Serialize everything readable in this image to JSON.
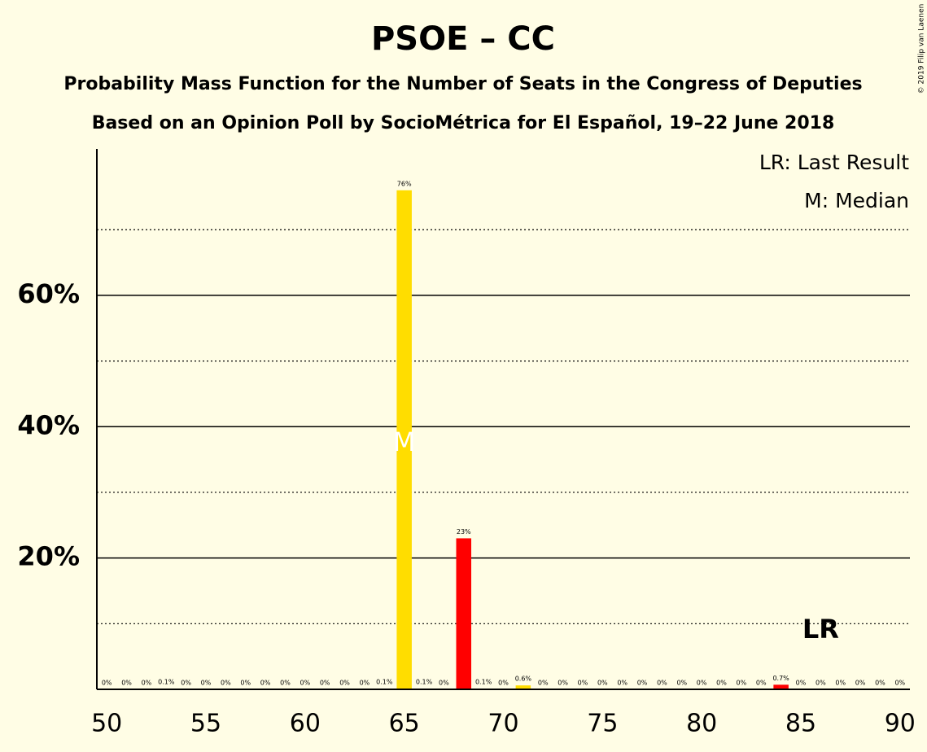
{
  "chart_data": {
    "type": "bar",
    "title": "PSOE – CC",
    "subtitle": "Probability Mass Function for the Number of Seats in the Congress of Deputies",
    "subtitle2": "Based on an Opinion Poll by SocioMétrica for El Español, 19–22 June 2018",
    "copyright": "© 2019 Filip van Laenen",
    "legend_lr": "LR: Last Result",
    "legend_median": "M: Median",
    "x": [
      50,
      51,
      52,
      53,
      54,
      55,
      56,
      57,
      58,
      59,
      60,
      61,
      62,
      63,
      64,
      65,
      66,
      67,
      68,
      69,
      70,
      71,
      72,
      73,
      74,
      75,
      76,
      77,
      78,
      79,
      80,
      81,
      82,
      83,
      84,
      85,
      86,
      87,
      88,
      89,
      90
    ],
    "values": [
      0,
      0,
      0,
      0.1,
      0,
      0,
      0,
      0,
      0,
      0,
      0,
      0,
      0,
      0,
      0.1,
      76,
      0.1,
      0,
      23,
      0.1,
      0,
      0.6,
      0,
      0,
      0,
      0,
      0,
      0,
      0,
      0,
      0,
      0,
      0,
      0,
      0.7,
      0,
      0,
      0,
      0,
      0,
      0
    ],
    "value_labels": [
      "0%",
      "0%",
      "0%",
      "0.1%",
      "0%",
      "0%",
      "0%",
      "0%",
      "0%",
      "0%",
      "0%",
      "0%",
      "0%",
      "0%",
      "0.1%",
      "76%",
      "0.1%",
      "0%",
      "23%",
      "0.1%",
      "0%",
      "0.6%",
      "0%",
      "0%",
      "0%",
      "0%",
      "0%",
      "0%",
      "0%",
      "0%",
      "0%",
      "0%",
      "0%",
      "0%",
      "0.7%",
      "0%",
      "0%",
      "0%",
      "0%",
      "0%",
      "0%"
    ],
    "colors": [
      "#ffdd00",
      "#ffdd00",
      "#ffdd00",
      "#ffdd00",
      "#ffdd00",
      "#ffdd00",
      "#ffdd00",
      "#ffdd00",
      "#ffdd00",
      "#ffdd00",
      "#ffdd00",
      "#ffdd00",
      "#ffdd00",
      "#ffdd00",
      "#ffdd00",
      "#ffdd00",
      "#ffdd00",
      "#ff0000",
      "#ff0000",
      "#ff0000",
      "#ff0000",
      "#ffdd00",
      "#ffdd00",
      "#ffdd00",
      "#ffdd00",
      "#ffdd00",
      "#ffdd00",
      "#ffdd00",
      "#ffdd00",
      "#ffdd00",
      "#ffdd00",
      "#ffdd00",
      "#ffdd00",
      "#ff0000",
      "#ff0000",
      "#ff0000",
      "#ff0000",
      "#ff0000",
      "#ff0000",
      "#ff0000",
      "#ff0000"
    ],
    "xlim": [
      49.5,
      90.5
    ],
    "xticks": [
      50,
      55,
      60,
      65,
      70,
      75,
      80,
      85,
      90
    ],
    "ylim": [
      0,
      82.3
    ],
    "yticks": [
      {
        "value": 20,
        "label": "20%"
      },
      {
        "value": 40,
        "label": "40%"
      },
      {
        "value": 60,
        "label": "60%"
      }
    ],
    "minor_grid": [
      10,
      30,
      50,
      70
    ],
    "grid": true,
    "median": 65,
    "median_label": "M",
    "last_result": 86,
    "last_result_label": "LR"
  }
}
